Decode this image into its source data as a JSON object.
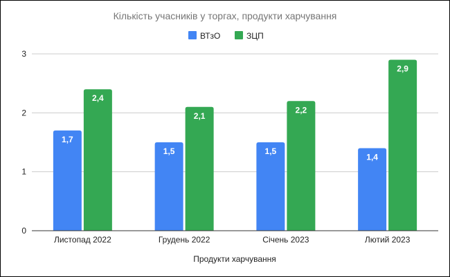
{
  "chart_data": {
    "type": "bar",
    "title": "Кількість учасників у торгах, продукти харчування",
    "xlabel": "Продукти харчування",
    "ylabel": "",
    "categories": [
      "Листопад 2022",
      "Грудень 2022",
      "Січень 2023",
      "Лютий 2023"
    ],
    "series": [
      {
        "name": "ВТзО",
        "color": "#4285f4",
        "values": [
          1.7,
          1.5,
          1.5,
          1.4
        ],
        "labels": [
          "1,7",
          "1,5",
          "1,5",
          "1,4"
        ]
      },
      {
        "name": "ЗЦП",
        "color": "#34a853",
        "values": [
          2.4,
          2.1,
          2.2,
          2.9
        ],
        "labels": [
          "2,4",
          "2,1",
          "2,2",
          "2,9"
        ]
      }
    ],
    "ylim": [
      0,
      3
    ],
    "yticks": [
      0,
      1,
      2,
      3
    ],
    "grid": true,
    "legend_position": "top"
  }
}
